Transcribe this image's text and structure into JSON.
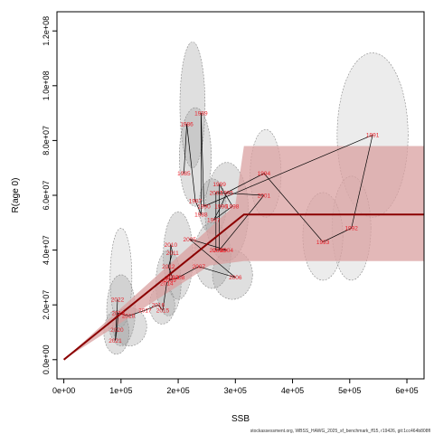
{
  "chart_data": {
    "type": "scatter",
    "title": "",
    "xlabel": "SSB",
    "ylabel": "R(age 0)",
    "xlim": [
      -12000,
      630000
    ],
    "ylim": [
      -7000000,
      127000000
    ],
    "x_ticks": [
      {
        "value": 0,
        "label": "0e+00"
      },
      {
        "value": 100000,
        "label": "1e+05"
      },
      {
        "value": 200000,
        "label": "2e+05"
      },
      {
        "value": 300000,
        "label": "3e+05"
      },
      {
        "value": 400000,
        "label": "4e+05"
      },
      {
        "value": 500000,
        "label": "5e+05"
      },
      {
        "value": 600000,
        "label": "6e+05"
      }
    ],
    "y_ticks": [
      {
        "value": 0,
        "label": "0.0e+00"
      },
      {
        "value": 20000000,
        "label": "2.0e+07"
      },
      {
        "value": 40000000,
        "label": "4.0e+07"
      },
      {
        "value": 60000000,
        "label": "6.0e+07"
      },
      {
        "value": 80000000,
        "label": "8.0e+07"
      },
      {
        "value": 100000000,
        "label": "1.0e+08"
      },
      {
        "value": 120000000,
        "label": "1.2e+08"
      }
    ],
    "points": [
      {
        "year": "1985",
        "x": 210000,
        "y": 68000000
      },
      {
        "year": "1986",
        "x": 215000,
        "y": 86000000
      },
      {
        "year": "1987",
        "x": 230000,
        "y": 58000000
      },
      {
        "year": "1988",
        "x": 240000,
        "y": 53000000
      },
      {
        "year": "1989",
        "x": 240000,
        "y": 90000000
      },
      {
        "year": "1990",
        "x": 245000,
        "y": 56000000
      },
      {
        "year": "1991",
        "x": 540000,
        "y": 82000000
      },
      {
        "year": "1992",
        "x": 503000,
        "y": 48000000
      },
      {
        "year": "1993",
        "x": 453000,
        "y": 43000000
      },
      {
        "year": "1994",
        "x": 350000,
        "y": 68000000
      },
      {
        "year": "1995",
        "x": 285000,
        "y": 61000000
      },
      {
        "year": "1996",
        "x": 275000,
        "y": 56000000
      },
      {
        "year": "1997",
        "x": 262000,
        "y": 51000000
      },
      {
        "year": "1998",
        "x": 295000,
        "y": 56000000
      },
      {
        "year": "1999",
        "x": 272000,
        "y": 64000000
      },
      {
        "year": "2000",
        "x": 272000,
        "y": 40000000
      },
      {
        "year": "2001",
        "x": 350000,
        "y": 60000000
      },
      {
        "year": "2002",
        "x": 266000,
        "y": 61000000
      },
      {
        "year": "2003",
        "x": 266000,
        "y": 40000000
      },
      {
        "year": "2004",
        "x": 285000,
        "y": 40000000
      },
      {
        "year": "2005",
        "x": 220000,
        "y": 44000000
      },
      {
        "year": "2006",
        "x": 300000,
        "y": 30000000
      },
      {
        "year": "2007",
        "x": 236000,
        "y": 34000000
      },
      {
        "year": "2008",
        "x": 200000,
        "y": 30000000
      },
      {
        "year": "2009",
        "x": 185000,
        "y": 29000000
      },
      {
        "year": "2010",
        "x": 187000,
        "y": 42000000
      },
      {
        "year": "2011",
        "x": 190000,
        "y": 39000000
      },
      {
        "year": "2012",
        "x": 183000,
        "y": 34000000
      },
      {
        "year": "2013",
        "x": 190000,
        "y": 30000000
      },
      {
        "year": "2014",
        "x": 180000,
        "y": 28000000
      },
      {
        "year": "2015",
        "x": 173000,
        "y": 18000000
      },
      {
        "year": "2016",
        "x": 165000,
        "y": 20000000
      },
      {
        "year": "2017",
        "x": 142000,
        "y": 18000000
      },
      {
        "year": "2018",
        "x": 113000,
        "y": 16000000
      },
      {
        "year": "2019",
        "x": 95000,
        "y": 17000000
      },
      {
        "year": "2020",
        "x": 93000,
        "y": 11000000
      },
      {
        "year": "2021",
        "x": 90000,
        "y": 7000000
      },
      {
        "year": "2022",
        "x": 94000,
        "y": 22000000
      }
    ],
    "ellipses": [
      {
        "x": 225000,
        "y": 93000000,
        "rx": 22000,
        "ry": 23000000,
        "dark": true
      },
      {
        "x": 230000,
        "y": 74000000,
        "rx": 28000,
        "ry": 18000000,
        "dark": true
      },
      {
        "x": 260000,
        "y": 56000000,
        "rx": 24000,
        "ry": 10000000,
        "dark": true
      },
      {
        "x": 353000,
        "y": 68000000,
        "rx": 27000,
        "ry": 16000000,
        "dark": false
      },
      {
        "x": 540000,
        "y": 82000000,
        "rx": 62000,
        "ry": 30000000,
        "dark": false
      },
      {
        "x": 503000,
        "y": 48000000,
        "rx": 34000,
        "ry": 19000000,
        "dark": false
      },
      {
        "x": 453000,
        "y": 45000000,
        "rx": 35000,
        "ry": 16000000,
        "dark": false
      },
      {
        "x": 285000,
        "y": 54000000,
        "rx": 38000,
        "ry": 18000000,
        "dark": true
      },
      {
        "x": 295000,
        "y": 31000000,
        "rx": 35000,
        "ry": 9000000,
        "dark": true
      },
      {
        "x": 260000,
        "y": 38000000,
        "rx": 32000,
        "ry": 12000000,
        "dark": true
      },
      {
        "x": 200000,
        "y": 38000000,
        "rx": 26000,
        "ry": 16000000,
        "dark": true
      },
      {
        "x": 183000,
        "y": 28000000,
        "rx": 22000,
        "ry": 12000000,
        "dark": true
      },
      {
        "x": 172000,
        "y": 20000000,
        "rx": 22000,
        "ry": 7000000,
        "dark": true
      },
      {
        "x": 100000,
        "y": 30000000,
        "rx": 19000,
        "ry": 18000000,
        "dark": false
      },
      {
        "x": 100000,
        "y": 18000000,
        "rx": 25000,
        "ry": 13000000,
        "dark": true
      },
      {
        "x": 115000,
        "y": 12000000,
        "rx": 30000,
        "ry": 7000000,
        "dark": true
      },
      {
        "x": 92000,
        "y": 10000000,
        "rx": 22000,
        "ry": 8000000,
        "dark": true
      }
    ],
    "sr_curve": {
      "breakpoint_ssb": 315000,
      "plateau_r": 53000000,
      "x_max": 630000,
      "band_lower_at_breakpoint": 36000000,
      "band_upper_at_breakpoint": 78000000,
      "band_lower_at_origin_slope_ssb": 255000,
      "band_upper_at_origin_slope_ssb": 300000
    },
    "grid": false,
    "legend": "none",
    "colors": {
      "curve": "#8b0000",
      "band": "#d9a0a0",
      "ellipse_light": "#d4d4d4",
      "ellipse_dark": "#9c9c9c",
      "points": "#e8202a",
      "path": "#000000"
    }
  },
  "footnote": "stockassessment.org, WBSS_HAWG_2025_sf_benchmark_ff15, r19426, git:1cc464b808fl"
}
